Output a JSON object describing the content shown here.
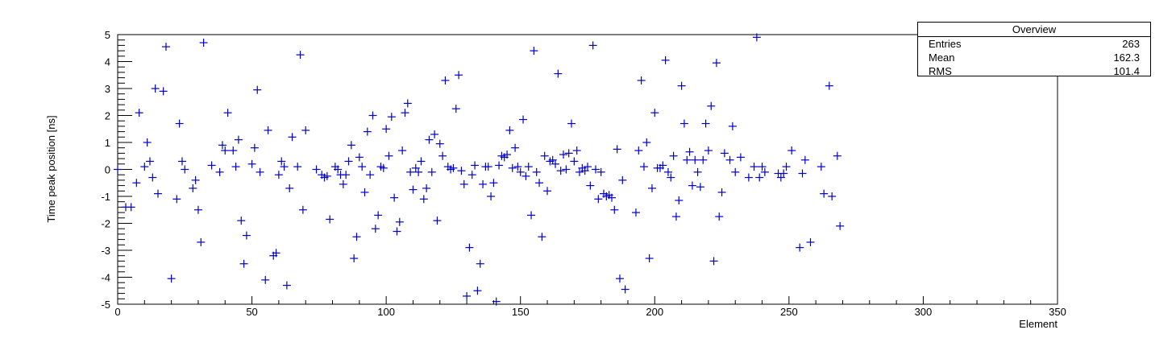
{
  "chart_data": {
    "type": "scatter",
    "title": "",
    "xlabel": "Element",
    "ylabel": "Time peak position [ns]",
    "xlim": [
      0,
      350
    ],
    "ylim": [
      -5,
      5
    ],
    "x_ticks": [
      0,
      50,
      100,
      150,
      200,
      250,
      300,
      350
    ],
    "y_ticks": [
      -5,
      -4,
      -3,
      -2,
      -1,
      0,
      1,
      2,
      3,
      4,
      5
    ],
    "marker_color": "#0000cc",
    "grid": false,
    "stats": {
      "title": "Overview",
      "rows": [
        {
          "label": "Entries",
          "value": "263"
        },
        {
          "label": "Mean",
          "value": "162.3"
        },
        {
          "label": "RMS",
          "value": "101.4"
        }
      ]
    },
    "points": [
      [
        0,
        0.0
      ],
      [
        3,
        -1.4
      ],
      [
        5,
        -1.4
      ],
      [
        7,
        -0.5
      ],
      [
        8,
        2.1
      ],
      [
        10,
        0.1
      ],
      [
        11,
        1.0
      ],
      [
        12,
        0.3
      ],
      [
        13,
        -0.3
      ],
      [
        14,
        3.0
      ],
      [
        15,
        -0.9
      ],
      [
        17,
        2.9
      ],
      [
        18,
        4.55
      ],
      [
        20,
        -4.05
      ],
      [
        22,
        -1.1
      ],
      [
        23,
        1.7
      ],
      [
        24,
        0.3
      ],
      [
        25,
        0.0
      ],
      [
        28,
        -0.7
      ],
      [
        29,
        -0.4
      ],
      [
        30,
        -1.5
      ],
      [
        31,
        -2.7
      ],
      [
        32,
        4.7
      ],
      [
        35,
        0.15
      ],
      [
        38,
        -0.1
      ],
      [
        39,
        0.9
      ],
      [
        40,
        0.7
      ],
      [
        41,
        2.1
      ],
      [
        43,
        0.7
      ],
      [
        44,
        0.1
      ],
      [
        45,
        1.1
      ],
      [
        46,
        -1.9
      ],
      [
        47,
        -3.5
      ],
      [
        48,
        -2.45
      ],
      [
        50,
        0.2
      ],
      [
        51,
        0.8
      ],
      [
        52,
        2.95
      ],
      [
        53,
        -0.1
      ],
      [
        55,
        -4.1
      ],
      [
        56,
        1.45
      ],
      [
        58,
        -3.2
      ],
      [
        59,
        -3.1
      ],
      [
        60,
        -0.2
      ],
      [
        61,
        0.3
      ],
      [
        62,
        0.1
      ],
      [
        63,
        -4.3
      ],
      [
        64,
        -0.7
      ],
      [
        65,
        1.2
      ],
      [
        67,
        0.1
      ],
      [
        68,
        4.25
      ],
      [
        69,
        -1.5
      ],
      [
        70,
        1.45
      ],
      [
        74,
        0.0
      ],
      [
        76,
        -0.2
      ],
      [
        77,
        -0.3
      ],
      [
        78,
        -0.25
      ],
      [
        79,
        -1.85
      ],
      [
        81,
        0.1
      ],
      [
        82,
        0.0
      ],
      [
        83,
        -0.2
      ],
      [
        84,
        -0.55
      ],
      [
        85,
        -0.2
      ],
      [
        86,
        0.3
      ],
      [
        87,
        0.9
      ],
      [
        88,
        -3.3
      ],
      [
        89,
        -2.5
      ],
      [
        90,
        0.45
      ],
      [
        91,
        0.1
      ],
      [
        92,
        -0.85
      ],
      [
        93,
        1.4
      ],
      [
        94,
        -0.2
      ],
      [
        95,
        2.0
      ],
      [
        96,
        -2.2
      ],
      [
        97,
        -1.7
      ],
      [
        98,
        0.1
      ],
      [
        99,
        0.05
      ],
      [
        100,
        1.5
      ],
      [
        101,
        0.5
      ],
      [
        102,
        1.95
      ],
      [
        103,
        -1.05
      ],
      [
        104,
        -2.3
      ],
      [
        105,
        -1.95
      ],
      [
        106,
        0.7
      ],
      [
        107,
        2.1
      ],
      [
        108,
        2.45
      ],
      [
        109,
        -0.1
      ],
      [
        110,
        -0.75
      ],
      [
        111,
        0.05
      ],
      [
        112,
        -0.1
      ],
      [
        113,
        0.3
      ],
      [
        114,
        -1.1
      ],
      [
        115,
        -0.7
      ],
      [
        116,
        1.1
      ],
      [
        117,
        -0.1
      ],
      [
        118,
        1.3
      ],
      [
        119,
        -1.9
      ],
      [
        120,
        0.95
      ],
      [
        121,
        0.5
      ],
      [
        122,
        3.3
      ],
      [
        123,
        0.1
      ],
      [
        124,
        0.0
      ],
      [
        125,
        0.05
      ],
      [
        126,
        2.25
      ],
      [
        127,
        3.5
      ],
      [
        128,
        -0.05
      ],
      [
        129,
        -0.55
      ],
      [
        130,
        -4.7
      ],
      [
        131,
        -2.9
      ],
      [
        132,
        -0.2
      ],
      [
        133,
        0.15
      ],
      [
        134,
        -4.5
      ],
      [
        135,
        -3.5
      ],
      [
        136,
        -0.55
      ],
      [
        137,
        0.1
      ],
      [
        138,
        0.1
      ],
      [
        139,
        -1.0
      ],
      [
        140,
        -0.5
      ],
      [
        141,
        -4.9
      ],
      [
        142,
        0.15
      ],
      [
        143,
        0.5
      ],
      [
        144,
        0.45
      ],
      [
        145,
        0.55
      ],
      [
        146,
        1.45
      ],
      [
        147,
        0.05
      ],
      [
        148,
        0.8
      ],
      [
        149,
        0.1
      ],
      [
        150,
        -0.1
      ],
      [
        151,
        1.85
      ],
      [
        152,
        -0.25
      ],
      [
        153,
        0.1
      ],
      [
        154,
        -1.7
      ],
      [
        155,
        4.4
      ],
      [
        156,
        -0.1
      ],
      [
        157,
        -0.5
      ],
      [
        158,
        -2.5
      ],
      [
        159,
        0.5
      ],
      [
        160,
        -0.8
      ],
      [
        161,
        0.3
      ],
      [
        162,
        0.35
      ],
      [
        163,
        0.2
      ],
      [
        164,
        3.55
      ],
      [
        165,
        -0.05
      ],
      [
        166,
        0.55
      ],
      [
        167,
        0.0
      ],
      [
        168,
        0.6
      ],
      [
        169,
        1.7
      ],
      [
        170,
        0.3
      ],
      [
        171,
        0.7
      ],
      [
        172,
        -0.1
      ],
      [
        173,
        0.05
      ],
      [
        174,
        -0.05
      ],
      [
        175,
        0.1
      ],
      [
        176,
        -0.6
      ],
      [
        177,
        4.6
      ],
      [
        178,
        0.0
      ],
      [
        179,
        -1.1
      ],
      [
        180,
        -0.1
      ],
      [
        181,
        -0.9
      ],
      [
        182,
        -1.0
      ],
      [
        183,
        -0.95
      ],
      [
        184,
        -1.05
      ],
      [
        185,
        -1.5
      ],
      [
        186,
        0.75
      ],
      [
        187,
        -4.05
      ],
      [
        188,
        -0.4
      ],
      [
        189,
        -4.45
      ],
      [
        193,
        -1.6
      ],
      [
        194,
        0.7
      ],
      [
        195,
        3.3
      ],
      [
        196,
        0.1
      ],
      [
        197,
        1.0
      ],
      [
        198,
        -3.3
      ],
      [
        199,
        -0.7
      ],
      [
        200,
        2.1
      ],
      [
        201,
        0.05
      ],
      [
        202,
        0.05
      ],
      [
        203,
        0.15
      ],
      [
        204,
        4.05
      ],
      [
        205,
        -0.1
      ],
      [
        206,
        -0.3
      ],
      [
        207,
        0.5
      ],
      [
        208,
        -1.75
      ],
      [
        209,
        -1.15
      ],
      [
        210,
        3.1
      ],
      [
        211,
        1.7
      ],
      [
        212,
        0.35
      ],
      [
        213,
        0.65
      ],
      [
        214,
        -0.6
      ],
      [
        215,
        0.35
      ],
      [
        216,
        -0.1
      ],
      [
        217,
        -0.65
      ],
      [
        218,
        0.35
      ],
      [
        219,
        1.7
      ],
      [
        220,
        0.7
      ],
      [
        221,
        2.35
      ],
      [
        222,
        -3.4
      ],
      [
        223,
        3.95
      ],
      [
        224,
        -1.75
      ],
      [
        225,
        -0.85
      ],
      [
        226,
        0.6
      ],
      [
        228,
        0.35
      ],
      [
        229,
        1.6
      ],
      [
        230,
        -0.1
      ],
      [
        232,
        0.45
      ],
      [
        235,
        -0.3
      ],
      [
        237,
        0.1
      ],
      [
        238,
        4.9
      ],
      [
        239,
        -0.3
      ],
      [
        240,
        0.1
      ],
      [
        241,
        -0.1
      ],
      [
        246,
        -0.15
      ],
      [
        247,
        -0.3
      ],
      [
        248,
        -0.15
      ],
      [
        249,
        0.1
      ],
      [
        251,
        0.7
      ],
      [
        254,
        -2.9
      ],
      [
        255,
        -0.15
      ],
      [
        256,
        0.35
      ],
      [
        258,
        -2.7
      ],
      [
        262,
        0.1
      ],
      [
        263,
        -0.9
      ],
      [
        265,
        3.1
      ],
      [
        266,
        -1.0
      ],
      [
        268,
        0.5
      ],
      [
        269,
        -2.1
      ]
    ]
  }
}
